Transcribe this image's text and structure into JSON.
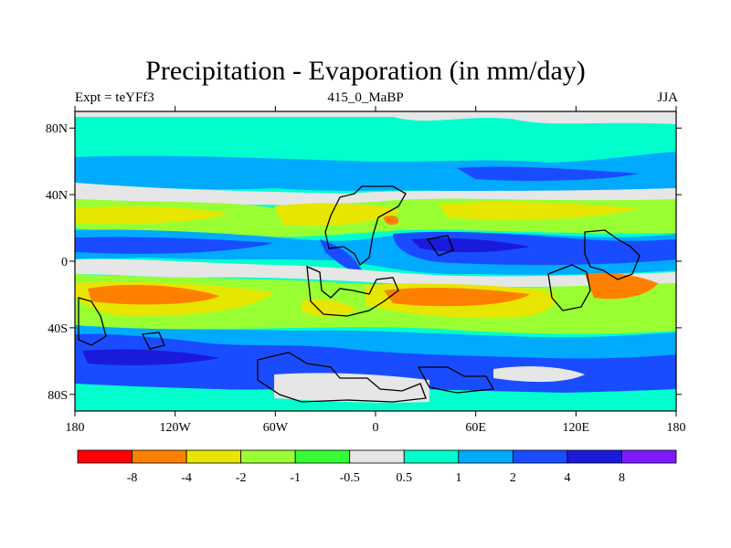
{
  "title": "Precipitation - Evaporation (in mm/day)",
  "left_label": "Expt = teYFf3",
  "center_label": "415_0_MaBP",
  "right_label": "JJA",
  "map": {
    "lon_ticks": [
      "180",
      "120W",
      "60W",
      "0",
      "60E",
      "120E",
      "180"
    ],
    "lat_ticks": [
      "80N",
      "40N",
      "0",
      "40S",
      "80S"
    ],
    "lon_values": [
      -180,
      -120,
      -60,
      0,
      60,
      120,
      180
    ],
    "lat_values": [
      80,
      40,
      0,
      -40,
      -80
    ],
    "lon_range": [
      -180,
      180
    ],
    "lat_range": [
      -90,
      90
    ]
  },
  "colorbar": {
    "colors": [
      "#ff0000",
      "#ff8000",
      "#e6e600",
      "#99ff33",
      "#33ff33",
      "#e6e6e6",
      "#00ffcc",
      "#00aaff",
      "#1a4cff",
      "#1a1adb",
      "#7f1aff"
    ],
    "labels": [
      "-8",
      "-4",
      "-2",
      "-1",
      "-0.5",
      "0.5",
      "1",
      "2",
      "4",
      "8"
    ]
  }
}
